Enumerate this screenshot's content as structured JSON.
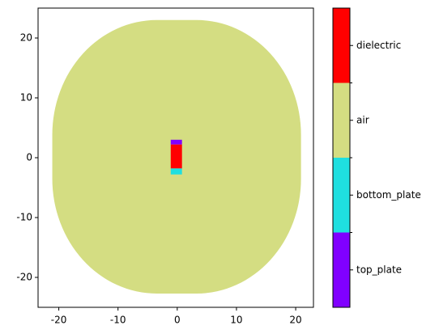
{
  "chart_data": {
    "type": "region_map",
    "xlim": [
      -23.5,
      23
    ],
    "ylim": [
      -25,
      25
    ],
    "xticks": [
      -20,
      -10,
      0,
      10,
      20
    ],
    "yticks": [
      -20,
      -10,
      0,
      10,
      20
    ],
    "legend_categories": [
      {
        "name": "top_plate",
        "color": "#8000ff"
      },
      {
        "name": "bottom_plate",
        "color": "#1fdfe0"
      },
      {
        "name": "air",
        "color": "#d4dd82"
      },
      {
        "name": "dielectric",
        "color": "#ff0000"
      }
    ],
    "regions": [
      {
        "category": 2,
        "shape": "rounded",
        "x": [
          -21.1,
          20.9
        ],
        "y": [
          -22.7,
          23
        ]
      },
      {
        "category": 0,
        "shape": "rect",
        "x": [
          -1.1,
          0.8
        ],
        "y": [
          2.2,
          3
        ]
      },
      {
        "category": 3,
        "shape": "rect",
        "x": [
          -1.1,
          0.8
        ],
        "y": [
          -1.8,
          2.2
        ]
      },
      {
        "category": 1,
        "shape": "rect",
        "x": [
          -1.1,
          0.8
        ],
        "y": [
          -2.8,
          -1.8
        ]
      }
    ]
  }
}
